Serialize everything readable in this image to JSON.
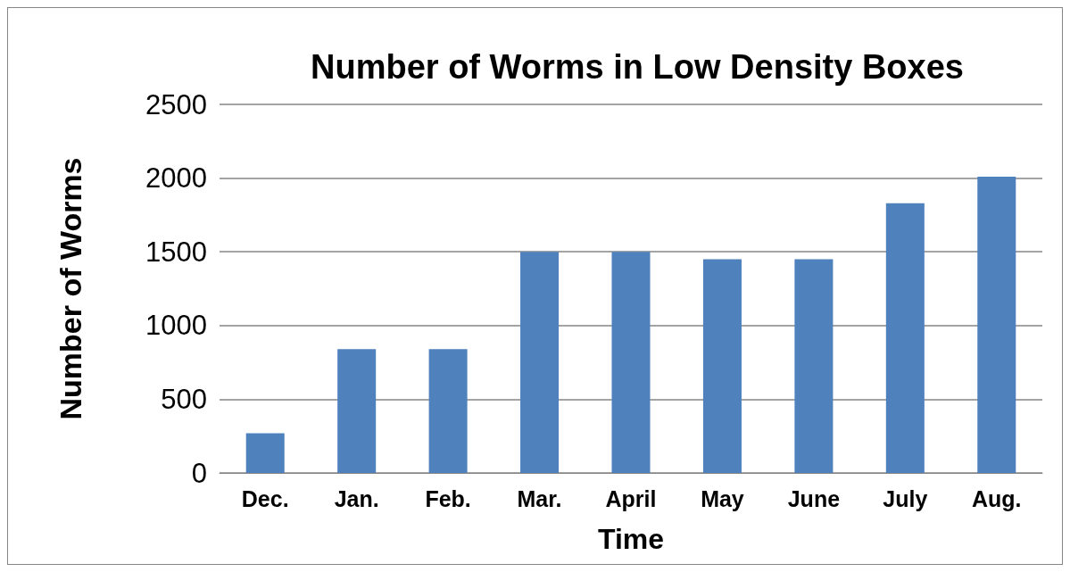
{
  "chart_data": {
    "type": "bar",
    "title": "Number of Worms in Low Density Boxes",
    "xlabel": "Time",
    "ylabel": "Number of Worms",
    "categories": [
      "Dec.",
      "Jan.",
      "Feb.",
      "Mar.",
      "April",
      "May",
      "June",
      "July",
      "Aug."
    ],
    "values": [
      270,
      840,
      840,
      1500,
      1500,
      1450,
      1450,
      1830,
      2010
    ],
    "color": "#4f81bd",
    "ylim": [
      0,
      2500
    ],
    "yticks": [
      0,
      500,
      1000,
      1500,
      2000,
      2500
    ],
    "grid": "y"
  }
}
